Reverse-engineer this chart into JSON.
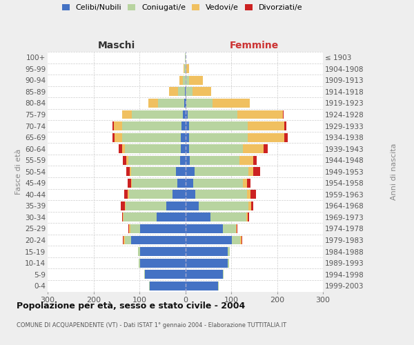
{
  "age_groups": [
    "0-4",
    "5-9",
    "10-14",
    "15-19",
    "20-24",
    "25-29",
    "30-34",
    "35-39",
    "40-44",
    "45-49",
    "50-54",
    "55-59",
    "60-64",
    "65-69",
    "70-74",
    "75-79",
    "80-84",
    "85-89",
    "90-94",
    "95-99",
    "100+"
  ],
  "birth_years": [
    "1999-2003",
    "1994-1998",
    "1989-1993",
    "1984-1988",
    "1979-1983",
    "1974-1978",
    "1969-1973",
    "1964-1968",
    "1959-1963",
    "1954-1958",
    "1949-1953",
    "1944-1948",
    "1939-1943",
    "1934-1938",
    "1929-1933",
    "1924-1928",
    "1919-1923",
    "1914-1918",
    "1909-1913",
    "1904-1908",
    "≤ 1903"
  ],
  "maschi_celibi": [
    78,
    88,
    98,
    98,
    118,
    98,
    62,
    42,
    28,
    18,
    20,
    12,
    10,
    10,
    8,
    5,
    2,
    1,
    0,
    0,
    0
  ],
  "maschi_coniugati": [
    1,
    2,
    3,
    5,
    14,
    22,
    72,
    88,
    95,
    98,
    98,
    112,
    122,
    128,
    130,
    112,
    58,
    15,
    5,
    2,
    1
  ],
  "maschi_vedovi": [
    0,
    0,
    0,
    0,
    2,
    2,
    2,
    2,
    2,
    2,
    3,
    4,
    5,
    16,
    18,
    20,
    20,
    20,
    8,
    2,
    0
  ],
  "maschi_divorziati": [
    0,
    0,
    0,
    0,
    2,
    2,
    2,
    8,
    8,
    8,
    8,
    8,
    8,
    4,
    2,
    0,
    0,
    0,
    0,
    0,
    0
  ],
  "femmine_nubili": [
    72,
    82,
    92,
    92,
    102,
    82,
    55,
    30,
    22,
    18,
    20,
    10,
    8,
    8,
    8,
    5,
    2,
    1,
    0,
    0,
    0
  ],
  "femmine_coniugate": [
    1,
    2,
    3,
    5,
    18,
    28,
    78,
    108,
    112,
    108,
    118,
    108,
    118,
    128,
    128,
    108,
    58,
    15,
    8,
    3,
    1
  ],
  "femmine_vedove": [
    0,
    0,
    0,
    0,
    2,
    2,
    3,
    5,
    8,
    8,
    10,
    30,
    45,
    80,
    80,
    100,
    80,
    40,
    30,
    5,
    0
  ],
  "femmine_divorziate": [
    0,
    0,
    0,
    0,
    2,
    2,
    3,
    5,
    12,
    8,
    15,
    8,
    8,
    8,
    4,
    2,
    0,
    0,
    0,
    0,
    0
  ],
  "colors": {
    "celibi_nubili": "#4472c4",
    "coniugati": "#b8d4a0",
    "vedovi": "#f0c060",
    "divorziati": "#cc2222"
  },
  "xlim": 300,
  "title": "Popolazione per età, sesso e stato civile - 2004",
  "subtitle": "COMUNE DI ACQUAPENDENTE (VT) - Dati ISTAT 1° gennaio 2004 - Elaborazione TUTTITALIA.IT",
  "ylabel": "Fasce di età",
  "ylabel_right": "Anni di nascita",
  "bg_color": "#eeeeee",
  "plot_bg": "#ffffff",
  "grid_color": "#cccccc"
}
